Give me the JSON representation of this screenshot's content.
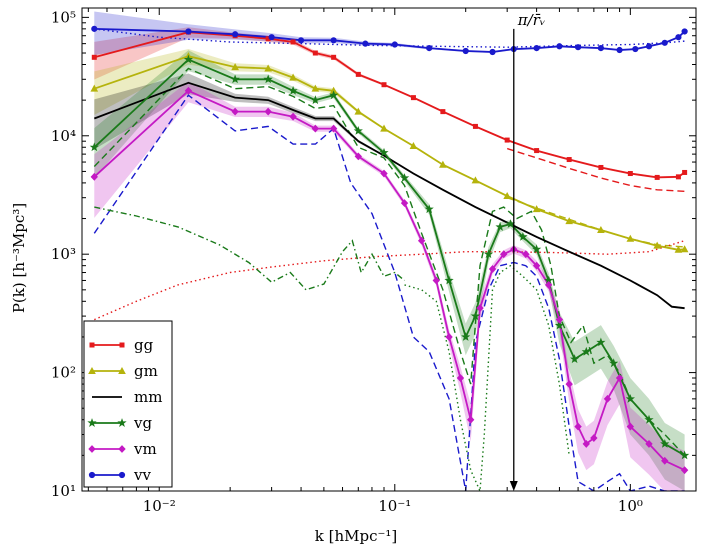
{
  "chart_data": {
    "type": "line",
    "xscale": "log",
    "yscale": "log",
    "xlim": [
      0.0047,
      1.9
    ],
    "ylim": [
      10,
      120000
    ],
    "xlabel": "k  [hMpc⁻¹]",
    "ylabel": "P(k)  [h⁻³Mpc³]",
    "xticks": [
      {
        "v": 0.01,
        "label": "10⁻²"
      },
      {
        "v": 0.1,
        "label": "10⁻¹"
      },
      {
        "v": 1,
        "label": "10⁰"
      }
    ],
    "yticks": [
      {
        "v": 10,
        "label": "10¹"
      },
      {
        "v": 100,
        "label": "10²"
      },
      {
        "v": 1000,
        "label": "10³"
      },
      {
        "v": 10000,
        "label": "10⁴"
      },
      {
        "v": 100000,
        "label": "10⁵"
      }
    ],
    "annotation": {
      "text": "π/r̄ᵥ",
      "x": 0.32,
      "y_from": 80000,
      "y_to": 10
    },
    "legend_position": "lower-left",
    "series": [
      {
        "name": "gg",
        "color": "#e41a1c",
        "marker": "square",
        "x": [
          0.0053,
          0.0133,
          0.021,
          0.029,
          0.037,
          0.046,
          0.055,
          0.07,
          0.09,
          0.12,
          0.16,
          0.22,
          0.3,
          0.4,
          0.55,
          0.75,
          1.0,
          1.3,
          1.6,
          1.7
        ],
        "y": [
          46000,
          75000,
          70000,
          66000,
          62000,
          50000,
          46000,
          33000,
          27000,
          21000,
          16000,
          12000,
          9200,
          7500,
          6300,
          5400,
          4800,
          4450,
          4500,
          4900
        ],
        "band": [
          0.35,
          0.1,
          0.06,
          0.06,
          0.05,
          0.04,
          0.04,
          0.03,
          0.02,
          0.02,
          0.02,
          0.02,
          0.02,
          0.02,
          0.02,
          0.02,
          0.02,
          0.02,
          0.02,
          0.02
        ]
      },
      {
        "name": "gm",
        "color": "#b5b30c",
        "marker": "triangle",
        "x": [
          0.0053,
          0.0133,
          0.021,
          0.029,
          0.037,
          0.046,
          0.055,
          0.07,
          0.09,
          0.12,
          0.16,
          0.22,
          0.3,
          0.4,
          0.55,
          0.75,
          1.0,
          1.3,
          1.6,
          1.7
        ],
        "y": [
          25000,
          47000,
          38000,
          37000,
          31000,
          25000,
          24000,
          16000,
          11500,
          8200,
          5700,
          4200,
          3100,
          2400,
          1900,
          1600,
          1350,
          1180,
          1090,
          1100
        ],
        "band": [
          0.4,
          0.15,
          0.08,
          0.07,
          0.06,
          0.05,
          0.05,
          0.03,
          0.02,
          0.02,
          0.02,
          0.02,
          0.02,
          0.02,
          0.02,
          0.02,
          0.02,
          0.02,
          0.02,
          0.02
        ]
      },
      {
        "name": "mm",
        "color": "#000000",
        "marker": "none",
        "x": [
          0.0053,
          0.0133,
          0.021,
          0.029,
          0.037,
          0.046,
          0.055,
          0.07,
          0.09,
          0.12,
          0.16,
          0.22,
          0.3,
          0.4,
          0.55,
          0.75,
          1.0,
          1.3,
          1.5,
          1.7
        ],
        "y": [
          14000,
          28000,
          21000,
          20000,
          16500,
          14000,
          14000,
          9000,
          6800,
          4800,
          3500,
          2500,
          1850,
          1400,
          1050,
          800,
          600,
          450,
          360,
          350
        ],
        "band": [
          0.45,
          0.2,
          0.08,
          0.07,
          0.06,
          0.05,
          0.05,
          0.03,
          0.02,
          0.02,
          0.02,
          0.02,
          0.02,
          0.02,
          0.02,
          0.02,
          0.02,
          0.02,
          0.02,
          0.02
        ]
      },
      {
        "name": "vg",
        "color": "#1a7a1a",
        "marker": "star",
        "x": [
          0.0053,
          0.0133,
          0.021,
          0.029,
          0.037,
          0.046,
          0.055,
          0.07,
          0.09,
          0.11,
          0.14,
          0.17,
          0.2,
          0.22,
          0.25,
          0.28,
          0.31,
          0.35,
          0.4,
          0.45,
          0.5,
          0.58,
          0.65,
          0.75,
          0.85,
          1.0,
          1.2,
          1.4,
          1.7
        ],
        "y": [
          8000,
          44000,
          30000,
          30000,
          24000,
          20000,
          22000,
          11000,
          7200,
          4400,
          2400,
          600,
          200,
          300,
          1000,
          1700,
          1800,
          1400,
          1100,
          600,
          250,
          130,
          150,
          180,
          120,
          60,
          40,
          25,
          20
        ],
        "band": [
          0.45,
          0.2,
          0.1,
          0.1,
          0.08,
          0.06,
          0.06,
          0.05,
          0.05,
          0.06,
          0.1,
          0.2,
          0.3,
          0.3,
          0.15,
          0.1,
          0.08,
          0.08,
          0.1,
          0.15,
          0.3,
          0.4,
          0.4,
          0.4,
          0.4,
          0.5,
          0.5,
          0.5,
          0.5
        ]
      },
      {
        "name": "vm",
        "color": "#c41ac4",
        "marker": "diamond",
        "x": [
          0.0053,
          0.0133,
          0.021,
          0.029,
          0.037,
          0.046,
          0.055,
          0.07,
          0.09,
          0.11,
          0.13,
          0.15,
          0.17,
          0.19,
          0.21,
          0.23,
          0.26,
          0.29,
          0.32,
          0.36,
          0.4,
          0.45,
          0.5,
          0.55,
          0.6,
          0.65,
          0.7,
          0.8,
          0.9,
          1.0,
          1.2,
          1.4,
          1.7
        ],
        "y": [
          4500,
          24000,
          16000,
          16000,
          14500,
          11500,
          11500,
          6700,
          4800,
          2700,
          1300,
          600,
          200,
          90,
          40,
          350,
          750,
          1000,
          1100,
          1000,
          800,
          550,
          280,
          80,
          35,
          25,
          28,
          60,
          90,
          35,
          25,
          18,
          15
        ],
        "band": [
          0.55,
          0.2,
          0.1,
          0.1,
          0.08,
          0.06,
          0.06,
          0.05,
          0.05,
          0.06,
          0.08,
          0.1,
          0.15,
          0.25,
          0.35,
          0.2,
          0.1,
          0.08,
          0.08,
          0.08,
          0.1,
          0.12,
          0.2,
          0.3,
          0.4,
          0.4,
          0.4,
          0.4,
          0.4,
          0.45,
          0.45,
          0.45,
          0.45
        ]
      },
      {
        "name": "vv",
        "color": "#1a1acc",
        "marker": "circle",
        "x": [
          0.0053,
          0.0133,
          0.021,
          0.03,
          0.04,
          0.055,
          0.075,
          0.1,
          0.14,
          0.2,
          0.26,
          0.32,
          0.4,
          0.5,
          0.6,
          0.75,
          0.9,
          1.05,
          1.2,
          1.4,
          1.6,
          1.7
        ],
        "y": [
          80000,
          76000,
          72000,
          68000,
          64000,
          64000,
          60000,
          59000,
          55000,
          52000,
          51000,
          54000,
          55000,
          57000,
          56000,
          55000,
          53000,
          54000,
          57000,
          61000,
          68000,
          76000
        ],
        "band": [
          0.4,
          0.15,
          0.1,
          0.08,
          0.06,
          0.05,
          0.04,
          0.03,
          0.02,
          0.02,
          0.02,
          0.02,
          0.02,
          0.02,
          0.02,
          0.02,
          0.02,
          0.02,
          0.02,
          0.02,
          0.02,
          0.02
        ]
      }
    ],
    "reference_curves": [
      {
        "name": "gg-dashed",
        "color": "#e41a1c",
        "style": "dashed",
        "x": [
          0.3,
          0.4,
          0.55,
          0.75,
          1.0,
          1.3,
          1.7
        ],
        "y": [
          7800,
          6500,
          5300,
          4400,
          3800,
          3500,
          3400
        ]
      },
      {
        "name": "gm-dashed",
        "color": "#b5b30c",
        "style": "dashed",
        "x": [
          0.3,
          0.5,
          0.75,
          1.0,
          1.3,
          1.7
        ],
        "y": [
          3000,
          2100,
          1600,
          1350,
          1200,
          1150
        ]
      },
      {
        "name": "vg-dashed",
        "color": "#1a7a1a",
        "style": "dashed",
        "x": [
          0.0053,
          0.0133,
          0.021,
          0.029,
          0.037,
          0.046,
          0.055,
          0.07,
          0.09,
          0.11,
          0.13,
          0.16,
          0.19,
          0.21,
          0.23,
          0.26,
          0.29,
          0.33,
          0.38,
          0.42,
          0.46,
          0.5,
          0.56,
          0.63,
          0.7,
          0.8,
          0.9,
          1.0,
          1.2,
          1.4,
          1.7
        ],
        "y": [
          5500,
          37000,
          25000,
          26000,
          21500,
          17000,
          18000,
          8000,
          6500,
          3800,
          1500,
          500,
          150,
          80,
          800,
          2300,
          2500,
          2000,
          2300,
          1600,
          800,
          300,
          180,
          250,
          120,
          140,
          100,
          60,
          40,
          30,
          20
        ]
      },
      {
        "name": "vm-dashed-blue",
        "color": "#1a1acc",
        "style": "dashed",
        "x": [
          0.0053,
          0.0133,
          0.021,
          0.029,
          0.037,
          0.046,
          0.055,
          0.065,
          0.08,
          0.1,
          0.12,
          0.14,
          0.17,
          0.2,
          0.22,
          0.25,
          0.28,
          0.32,
          0.36,
          0.4,
          0.45,
          0.5,
          0.55,
          0.6,
          0.7,
          0.8,
          0.9,
          1.0,
          1.2,
          1.4,
          1.7
        ],
        "y": [
          1500,
          22000,
          11000,
          12000,
          8500,
          8500,
          11500,
          4000,
          2200,
          700,
          200,
          150,
          60,
          10,
          180,
          500,
          800,
          850,
          800,
          650,
          350,
          130,
          35,
          12,
          10,
          12,
          14,
          10,
          11,
          10,
          10
        ]
      },
      {
        "name": "vv-dotted",
        "color": "#1a1acc",
        "style": "dotted",
        "x": [
          0.0053,
          0.01,
          0.02,
          0.04,
          0.08,
          0.15,
          0.3,
          0.6,
          1.0,
          1.4,
          1.7
        ],
        "y": [
          80000,
          68000,
          62000,
          60000,
          58000,
          57000,
          56000,
          58000,
          59000,
          61000,
          63000
        ]
      },
      {
        "name": "gg-dotted",
        "color": "#e41a1c",
        "style": "dotted",
        "x": [
          0.0053,
          0.008,
          0.012,
          0.02,
          0.03,
          0.05,
          0.08,
          0.13,
          0.2,
          0.3,
          0.5,
          0.8,
          1.2,
          1.7
        ],
        "y": [
          280,
          400,
          550,
          700,
          780,
          880,
          950,
          1000,
          1050,
          1050,
          1030,
          1000,
          1050,
          1300
        ]
      },
      {
        "name": "vg-dashdot",
        "color": "#1a7a1a",
        "style": "dashdot",
        "x": [
          0.0053,
          0.008,
          0.012,
          0.018,
          0.024,
          0.03,
          0.036,
          0.042,
          0.05,
          0.06,
          0.066,
          0.072,
          0.08,
          0.09,
          0.1,
          0.11
        ],
        "y": [
          2500,
          2100,
          1700,
          1200,
          850,
          580,
          700,
          500,
          560,
          1050,
          1300,
          700,
          1000,
          650,
          700,
          600
        ]
      },
      {
        "name": "vm-dotted",
        "color": "#1a7a1a",
        "style": "dotted",
        "x": [
          0.11,
          0.13,
          0.15,
          0.17,
          0.19,
          0.21,
          0.23,
          0.24,
          0.26,
          0.28,
          0.31,
          0.35,
          0.4,
          0.45,
          0.5,
          0.55
        ],
        "y": [
          550,
          500,
          400,
          150,
          40,
          15,
          10,
          30,
          500,
          700,
          800,
          650,
          500,
          250,
          80,
          20
        ]
      }
    ]
  }
}
